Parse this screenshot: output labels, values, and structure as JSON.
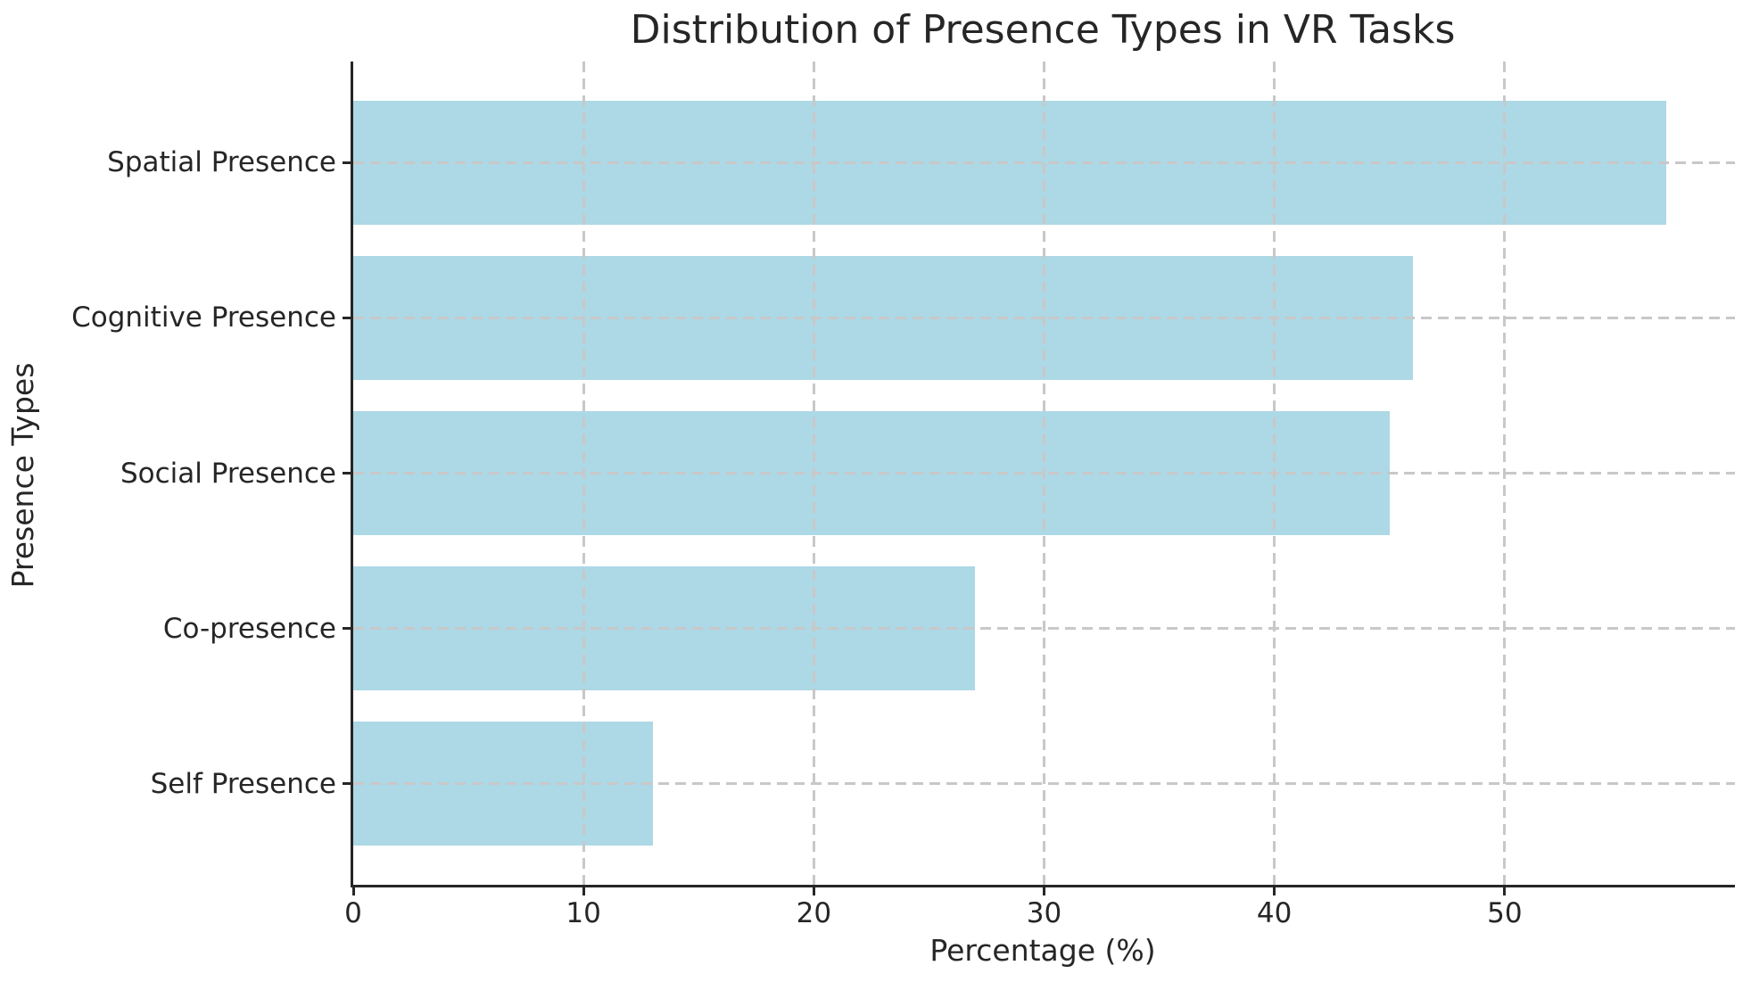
{
  "chart_data": {
    "type": "bar",
    "orientation": "horizontal",
    "title": "Distribution of Presence Types in VR Tasks",
    "xlabel": "Percentage (%)",
    "ylabel": "Presence Types",
    "categories": [
      "Spatial Presence",
      "Cognitive Presence",
      "Social Presence",
      "Co-presence",
      "Self Presence"
    ],
    "values": [
      57,
      46,
      45,
      27,
      13
    ],
    "xlim": [
      0,
      60
    ],
    "xticks": [
      0,
      10,
      20,
      30,
      40,
      50
    ],
    "bar_color": "#ADD8E6",
    "text_color": "#262626",
    "spine_color": "#262626",
    "grid": {
      "visible": true,
      "style": "dashed",
      "color": "#c8c8c8",
      "drawn_over_bars": true
    },
    "legend_position": "none",
    "bar_height_fraction": 0.8
  }
}
